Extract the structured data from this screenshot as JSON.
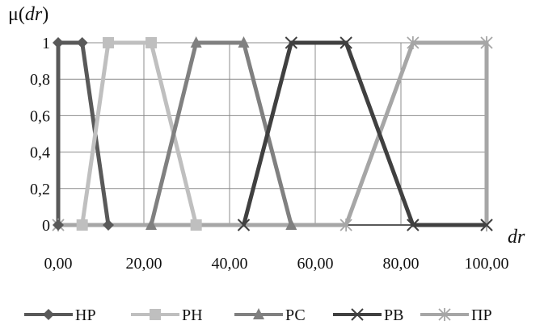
{
  "chart_data": {
    "type": "line",
    "title": "",
    "ylabel_prefix": "μ(",
    "ylabel_var": "dr",
    "ylabel_suffix": ")",
    "xlabel": "dr",
    "xlim": [
      0,
      100
    ],
    "ylim": [
      0,
      1
    ],
    "x_ticks": [
      0,
      20,
      40,
      60,
      80,
      100
    ],
    "x_tick_labels": [
      "0,00",
      "20,00",
      "40,00",
      "60,00",
      "80,00",
      "100,00"
    ],
    "y_ticks": [
      0,
      0.2,
      0.4,
      0.6,
      0.8,
      1
    ],
    "y_tick_labels": [
      "0",
      "0,2",
      "0,4",
      "0,6",
      "0,8",
      "1"
    ],
    "grid": true,
    "legend_position": "bottom",
    "series": [
      {
        "name": "НР",
        "marker": "diamond",
        "color": "#595959",
        "points": [
          [
            0,
            0
          ],
          [
            0,
            1
          ],
          [
            5.6,
            1
          ],
          [
            11.7,
            0
          ]
        ]
      },
      {
        "name": "РН",
        "marker": "square",
        "color": "#bfbfbf",
        "points": [
          [
            5.6,
            0
          ],
          [
            11.7,
            1
          ],
          [
            21.7,
            1
          ],
          [
            32.2,
            0
          ]
        ]
      },
      {
        "name": "РС",
        "marker": "triangle",
        "color": "#808080",
        "points": [
          [
            21.7,
            0
          ],
          [
            32.2,
            1
          ],
          [
            43.3,
            1
          ],
          [
            54.4,
            0
          ]
        ]
      },
      {
        "name": "РВ",
        "marker": "x",
        "color": "#404040",
        "points": [
          [
            43.3,
            0
          ],
          [
            54.4,
            1
          ],
          [
            67.2,
            1
          ],
          [
            82.8,
            0
          ],
          [
            100,
            0
          ]
        ]
      },
      {
        "name": "ПР",
        "marker": "star",
        "color": "#a6a6a6",
        "points": [
          [
            0,
            0
          ],
          [
            67.2,
            0
          ],
          [
            82.8,
            1
          ],
          [
            100,
            1
          ],
          [
            100,
            0
          ]
        ]
      }
    ]
  }
}
